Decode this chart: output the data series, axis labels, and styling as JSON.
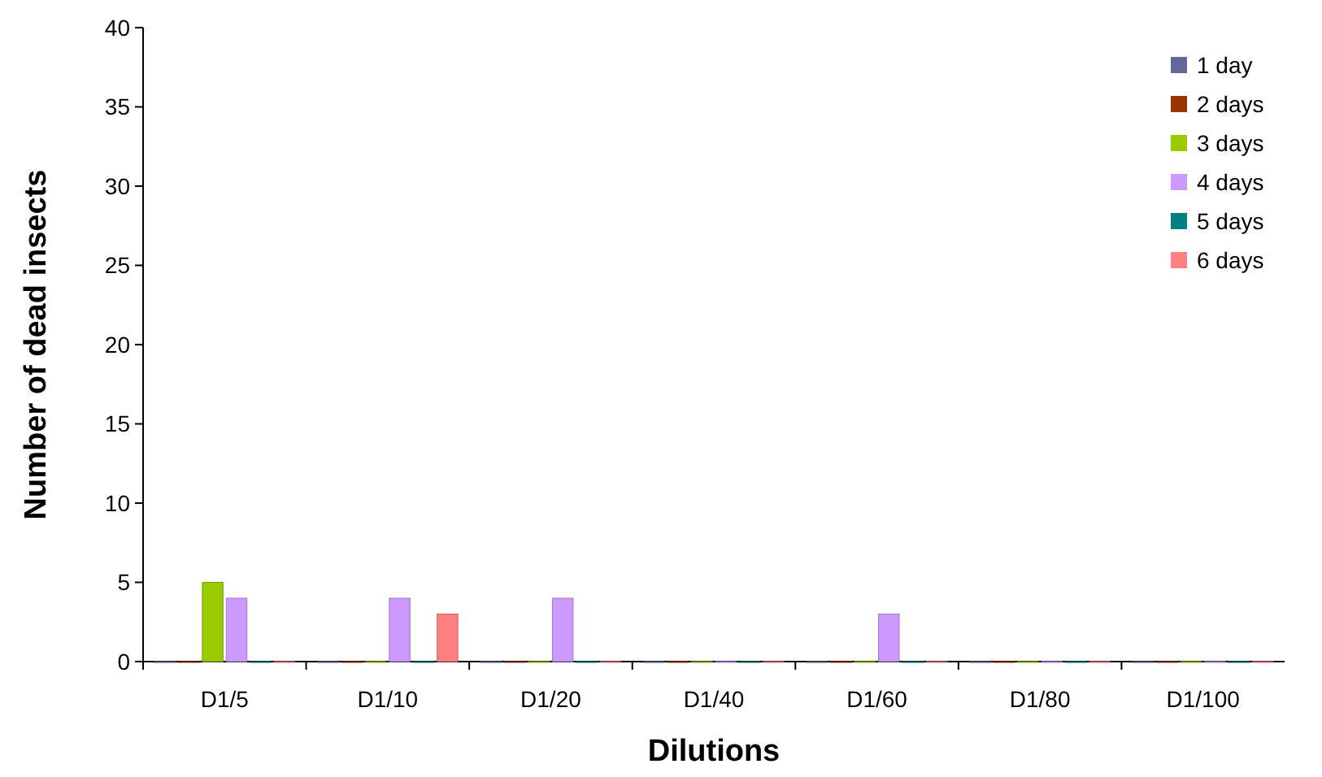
{
  "chart_data": {
    "type": "bar",
    "xlabel": "Dilutions",
    "ylabel": "Number of dead insects",
    "categories": [
      "D1/5",
      "D1/10",
      "D1/20",
      "D1/40",
      "D1/60",
      "D1/80",
      "D1/100"
    ],
    "series": [
      {
        "name": "1 day",
        "color": "#666699",
        "values": [
          0,
          0,
          0,
          0,
          0,
          0,
          0
        ]
      },
      {
        "name": "2 days",
        "color": "#993300",
        "values": [
          0,
          0,
          0,
          0,
          0,
          0,
          0
        ]
      },
      {
        "name": "3 days",
        "color": "#99cc00",
        "values": [
          5,
          0,
          0,
          0,
          0,
          0,
          0
        ]
      },
      {
        "name": "4 days",
        "color": "#cc99ff",
        "values": [
          4,
          4,
          4,
          0,
          3,
          0,
          0
        ]
      },
      {
        "name": "5 days",
        "color": "#008080",
        "values": [
          0,
          0,
          0,
          0,
          0,
          0,
          0
        ]
      },
      {
        "name": "6 days",
        "color": "#ff8080",
        "values": [
          0,
          3,
          0,
          0,
          0,
          0,
          0
        ]
      }
    ],
    "ylim": [
      0,
      40
    ],
    "yticks": [
      0,
      5,
      10,
      15,
      20,
      25,
      30,
      35,
      40
    ],
    "grid": false,
    "legend": "top right"
  }
}
